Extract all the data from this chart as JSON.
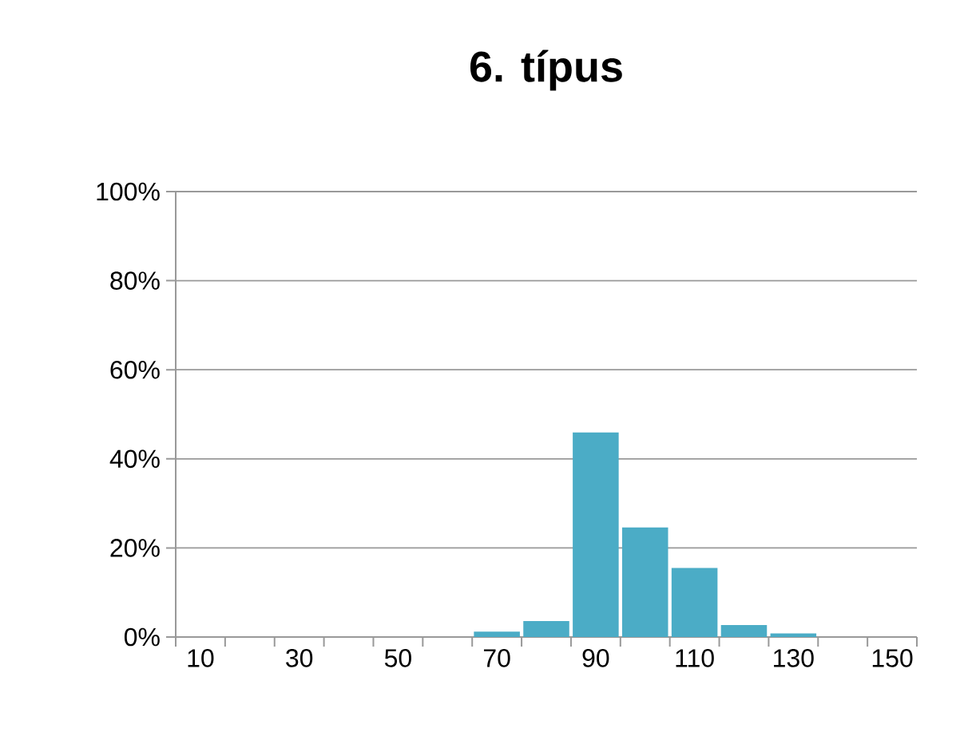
{
  "chart_data": {
    "type": "bar",
    "title": "6. típus",
    "categories": [
      "10",
      null,
      "30",
      null,
      "50",
      null,
      "70",
      null,
      "90",
      null,
      "110",
      null,
      "130",
      null,
      "150"
    ],
    "values": [
      0,
      0,
      0,
      0,
      0,
      0,
      1.2,
      3.6,
      45.9,
      24.6,
      15.5,
      2.7,
      0.8,
      0,
      0
    ],
    "color": "#4bacc6",
    "ylim": [
      0,
      100
    ],
    "yticks": [
      {
        "value": 0,
        "label": "0%"
      },
      {
        "value": 20,
        "label": "20%"
      },
      {
        "value": 40,
        "label": "40%"
      },
      {
        "value": 60,
        "label": "60%"
      },
      {
        "value": 80,
        "label": "80%"
      },
      {
        "value": 100,
        "label": "100%"
      }
    ],
    "grid": "y"
  }
}
